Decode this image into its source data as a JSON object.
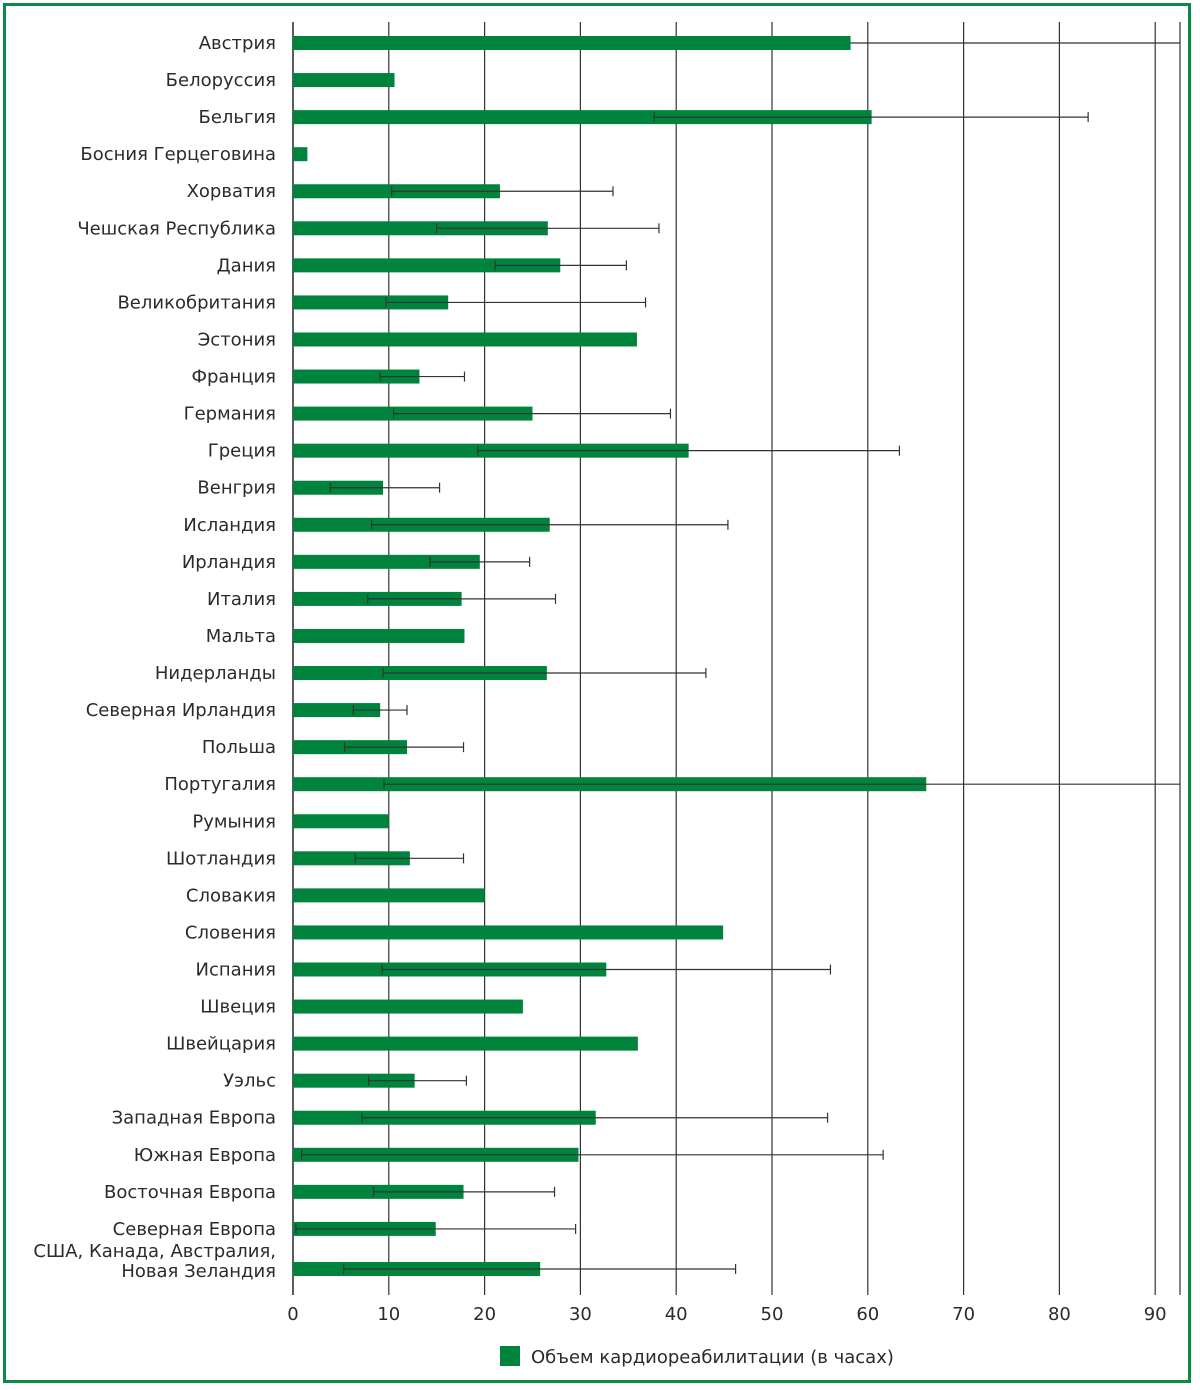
{
  "chart_data": {
    "type": "bar",
    "orientation": "horizontal",
    "title": "",
    "xlabel": "",
    "ylabel": "",
    "xlim": [
      0,
      93
    ],
    "x_ticks": [
      0,
      10,
      20,
      30,
      40,
      50,
      60,
      70,
      80,
      90
    ],
    "grid": "vertical",
    "legend_placement": "bottom",
    "bar_color": "#00843d",
    "frame_color": "#0a8a45",
    "series": [
      {
        "name": "Объем кардиореабилитации (в часах)",
        "values": [
          58.2,
          10.6,
          60.4,
          1.5,
          21.6,
          26.6,
          27.9,
          16.2,
          35.9,
          13.2,
          25.0,
          41.3,
          9.4,
          26.8,
          19.5,
          17.6,
          17.9,
          26.5,
          9.1,
          11.9,
          66.1,
          10.0,
          12.2,
          20.0,
          44.9,
          32.7,
          24.0,
          36.0,
          12.7,
          31.6,
          29.8,
          17.8,
          14.9,
          25.8
        ],
        "error_low": [
          null,
          null,
          37.7,
          null,
          10.3,
          15.0,
          21.1,
          9.7,
          null,
          9.1,
          10.5,
          19.3,
          3.9,
          8.2,
          14.3,
          7.8,
          null,
          9.4,
          6.3,
          5.4,
          9.5,
          null,
          6.5,
          null,
          null,
          9.3,
          null,
          null,
          7.9,
          7.2,
          0.9,
          8.4,
          0.3,
          5.3
        ],
        "error_high": [
          93.0,
          null,
          83.0,
          null,
          33.4,
          38.2,
          34.8,
          36.8,
          null,
          17.9,
          39.4,
          63.3,
          15.3,
          45.4,
          24.7,
          27.4,
          null,
          43.1,
          11.9,
          17.8,
          93.0,
          null,
          17.8,
          null,
          null,
          56.1,
          null,
          null,
          18.1,
          55.8,
          61.6,
          27.3,
          29.5,
          46.2
        ]
      }
    ],
    "categories": [
      "Австрия",
      "Белоруссия",
      "Бельгия",
      "Босния Герцеговина",
      "Хорватия",
      "Чешская Республика",
      "Дания",
      "Великобритания",
      "Эстония",
      "Франция",
      "Германия",
      "Греция",
      "Венгрия",
      "Исландия",
      "Ирландия",
      "Италия",
      "Мальта",
      "Нидерланды",
      "Северная Ирландия",
      "Польша",
      "Португалия",
      "Румыния",
      "Шотландия",
      "Словакия",
      "Словения",
      "Испания",
      "Швеция",
      "Швейцария",
      "Уэльс",
      "Западная Европа",
      "Южная Европа",
      "Восточная Европа",
      "Северная Европа",
      "США, Канада, Австралия, Новая Зеландия"
    ],
    "category_lines": [
      [
        "Австрия"
      ],
      [
        "Белоруссия"
      ],
      [
        "Бельгия"
      ],
      [
        "Босния Герцеговина"
      ],
      [
        "Хорватия"
      ],
      [
        "Чешская Республика"
      ],
      [
        "Дания"
      ],
      [
        "Великобритания"
      ],
      [
        "Эстония"
      ],
      [
        "Франция"
      ],
      [
        "Германия"
      ],
      [
        "Греция"
      ],
      [
        "Венгрия"
      ],
      [
        "Исландия"
      ],
      [
        "Ирландия"
      ],
      [
        "Италия"
      ],
      [
        "Мальта"
      ],
      [
        "Нидерланды"
      ],
      [
        "Северная Ирландия"
      ],
      [
        "Польша"
      ],
      [
        "Португалия"
      ],
      [
        "Румыния"
      ],
      [
        "Шотландия"
      ],
      [
        "Словакия"
      ],
      [
        "Словения"
      ],
      [
        "Испания"
      ],
      [
        "Швеция"
      ],
      [
        "Швейцария"
      ],
      [
        "Уэльс"
      ],
      [
        "Западная Европа"
      ],
      [
        "Южная Европа"
      ],
      [
        "Восточная Европа"
      ],
      [
        "Северная Европа"
      ],
      [
        "США, Канада, Австралия,",
        "Новая Зеландия"
      ]
    ]
  }
}
